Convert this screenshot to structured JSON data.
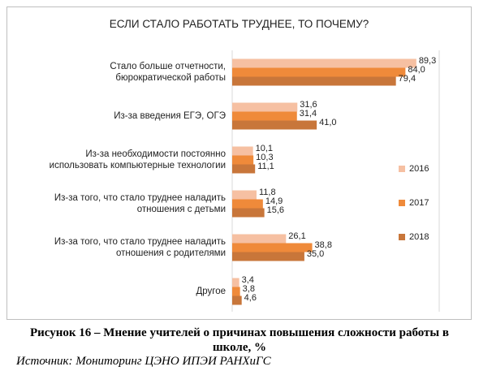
{
  "chart_data": {
    "type": "hbar",
    "title": "ЕСЛИ СТАЛО РАБОТАТЬ ТРУДНЕЕ, ТО ПОЧЕМУ?",
    "categories": [
      "Стало больше отчетности,\nбюрократической работы",
      "Из-за введения ЕГЭ, ОГЭ",
      "Из-за необходимости постоянно\nиспользовать компьютерные технологии",
      "Из-за того, что стало труднее наладить\nотношения с детьми",
      "Из-за того, что стало труднее наладить\nотношения с родителями",
      "Другое"
    ],
    "series": [
      {
        "name": "2016",
        "color": "#f6c0a2",
        "values": [
          89.3,
          31.6,
          10.1,
          11.8,
          26.1,
          3.4
        ],
        "value_labels": [
          "89,3",
          "31,6",
          "10,1",
          "11,8",
          "26,1",
          "3,4"
        ]
      },
      {
        "name": "2017",
        "color": "#ef8a3a",
        "values": [
          84.0,
          31.4,
          10.3,
          14.9,
          38.8,
          3.8
        ],
        "value_labels": [
          "84,0",
          "31,4",
          "10,3",
          "14,9",
          "38,8",
          "3,8"
        ]
      },
      {
        "name": "2018",
        "color": "#c8763a",
        "values": [
          79.4,
          41.0,
          11.1,
          15.6,
          35.0,
          4.6
        ],
        "value_labels": [
          "79,4",
          "41,0",
          "11,1",
          "15,6",
          "35,0",
          "4,6"
        ]
      }
    ],
    "xlim": [
      0,
      100
    ],
    "legend": "right"
  },
  "figure_caption": "Рисунок 16 – Мнение учителей о причинах повышения сложности работы в школе, %",
  "source": "Источник: Мониторинг ЦЭНО ИПЭИ РАНХиГС"
}
